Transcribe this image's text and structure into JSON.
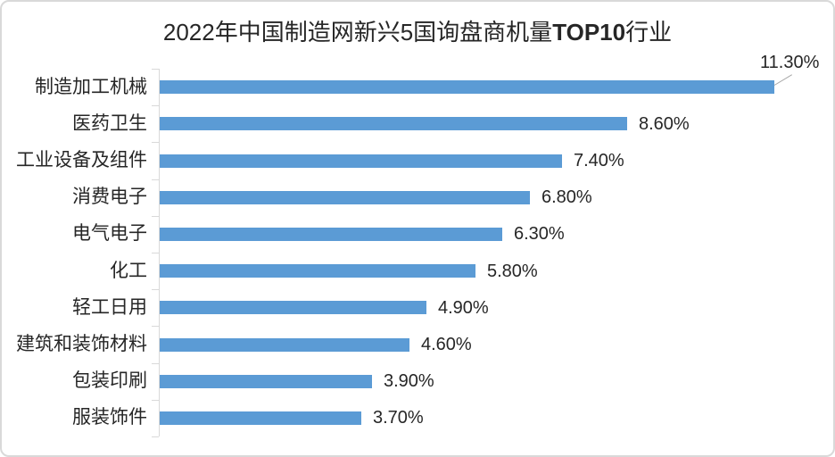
{
  "chart_data": {
    "type": "bar",
    "orientation": "horizontal",
    "title": "2022年中国制造网新兴5国询盘商机量TOP10行业",
    "title_prefix": "2022年中国制造网新兴5国询盘商机量",
    "title_bold": "TOP10",
    "title_suffix": "行业",
    "categories": [
      "制造加工机械",
      "医药卫生",
      "工业设备及组件",
      "消费电子",
      "电气电子",
      "化工",
      "轻工日用",
      "建筑和装饰材料",
      "包装印刷",
      "服装饰件"
    ],
    "values": [
      11.3,
      8.6,
      7.4,
      6.8,
      6.3,
      5.8,
      4.9,
      4.6,
      3.9,
      3.7
    ],
    "value_labels": [
      "11.30%",
      "8.60%",
      "7.40%",
      "6.80%",
      "6.30%",
      "5.80%",
      "4.90%",
      "4.60%",
      "3.90%",
      "3.70%"
    ],
    "xlim": [
      0,
      12.4
    ],
    "grid": false,
    "legend": false,
    "bar_color": "#5B9BD5",
    "axis_color": "#D9D9D9",
    "text_color": "#262626",
    "callout_line_color": "#A6A6A6",
    "first_label_has_leader_line": true
  }
}
